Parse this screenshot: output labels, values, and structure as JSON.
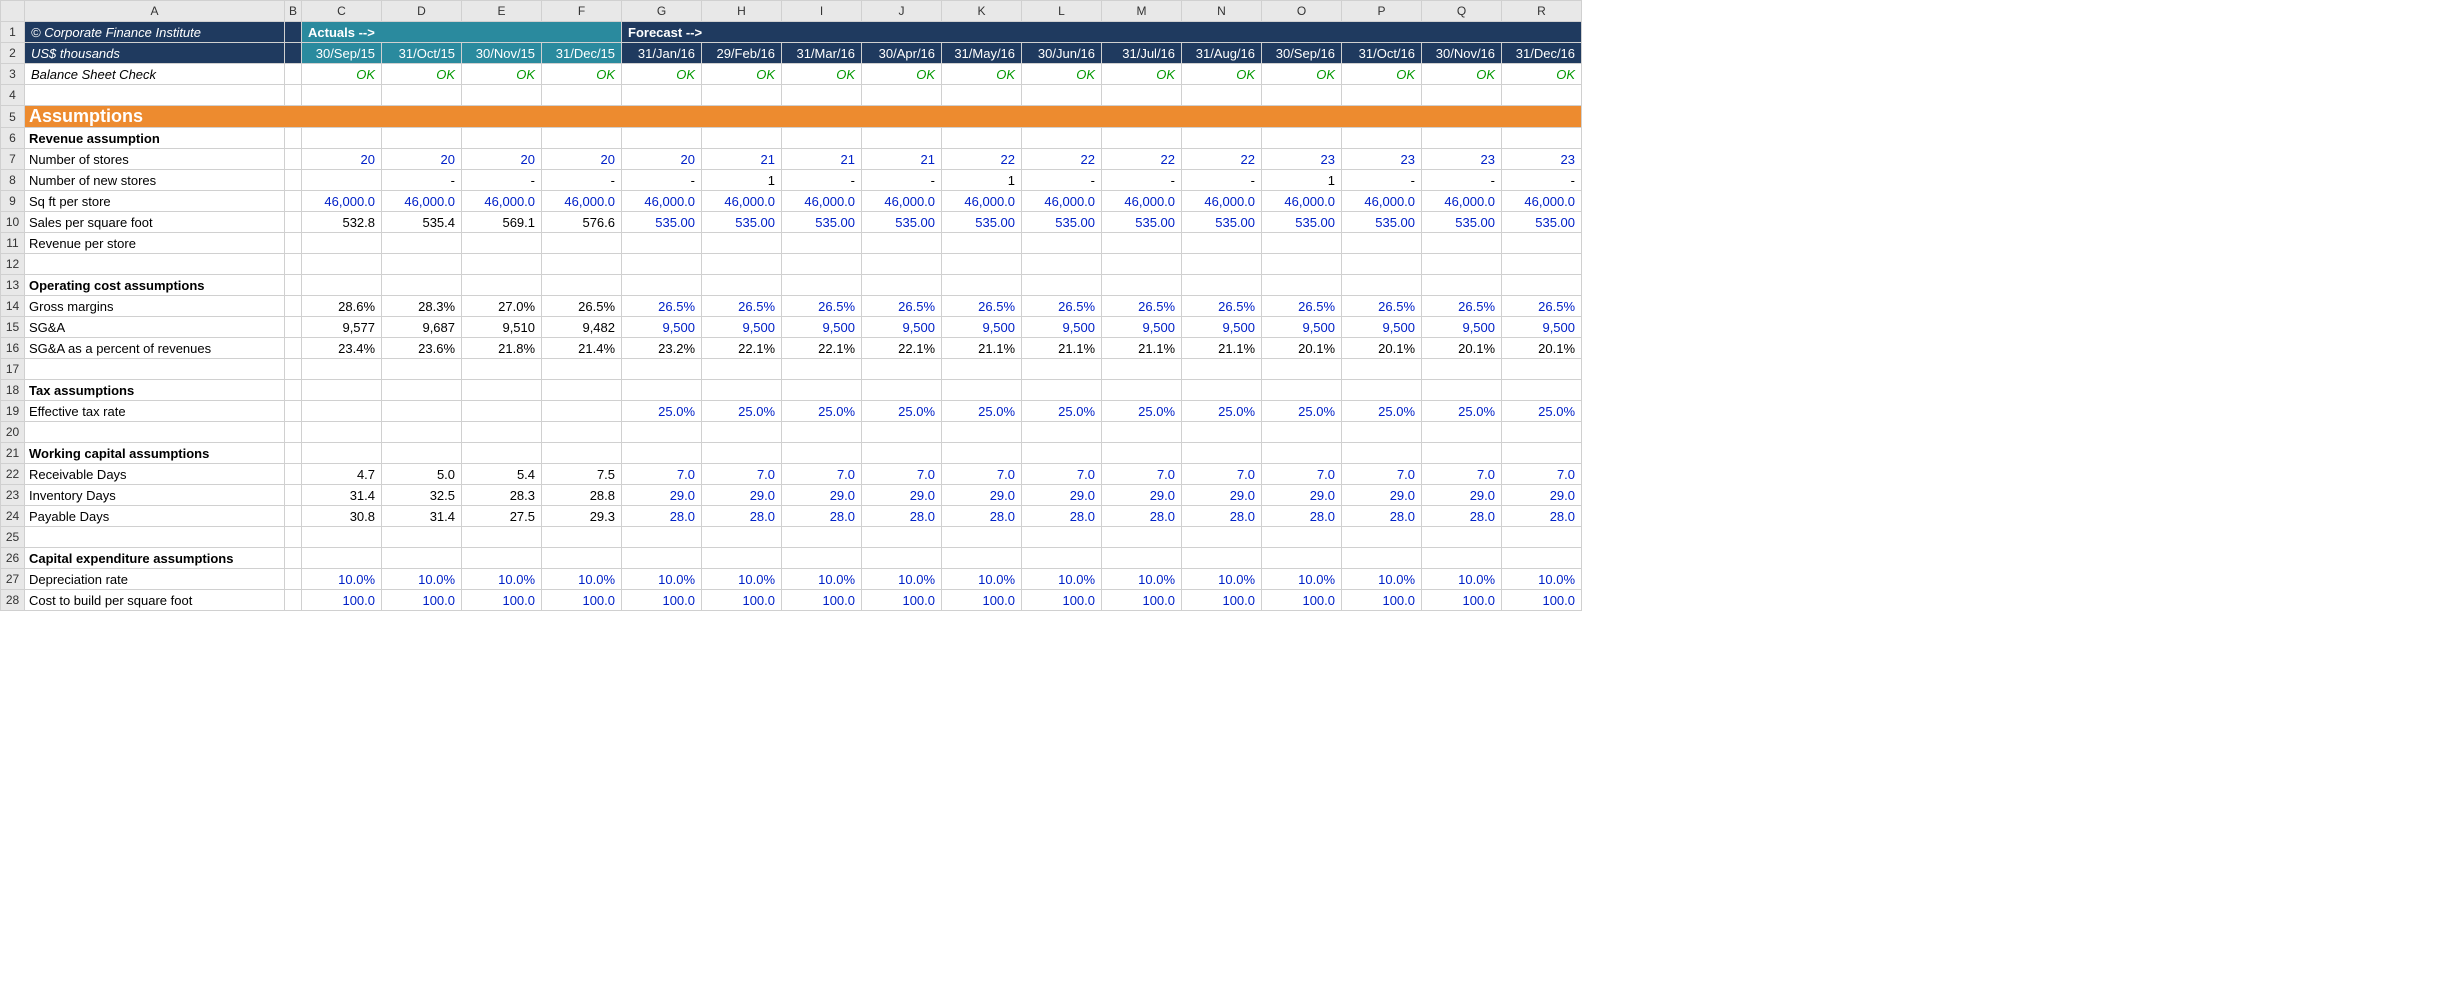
{
  "colHeaders": [
    "A",
    "B",
    "C",
    "D",
    "E",
    "F",
    "G",
    "H",
    "I",
    "J",
    "K",
    "L",
    "M",
    "N",
    "O",
    "P",
    "Q",
    "R"
  ],
  "rowCount": 28,
  "r1": {
    "a": "© Corporate Finance Institute",
    "c": "Actuals -->",
    "g": "Forecast -->"
  },
  "r2": {
    "a": "US$ thousands",
    "dates": [
      "30/Sep/15",
      "31/Oct/15",
      "30/Nov/15",
      "31/Dec/15",
      "31/Jan/16",
      "29/Feb/16",
      "31/Mar/16",
      "30/Apr/16",
      "31/May/16",
      "30/Jun/16",
      "31/Jul/16",
      "31/Aug/16",
      "30/Sep/16",
      "31/Oct/16",
      "30/Nov/16",
      "31/Dec/16"
    ]
  },
  "r3": {
    "a": "Balance Sheet Check",
    "ok": "OK"
  },
  "r5": {
    "a": "Assumptions"
  },
  "r6": {
    "a": "Revenue assumption"
  },
  "r7": {
    "a": "Number of stores",
    "v": [
      "20",
      "20",
      "20",
      "20",
      "20",
      "21",
      "21",
      "21",
      "22",
      "22",
      "22",
      "22",
      "23",
      "23",
      "23",
      "23"
    ],
    "blueFrom": 0
  },
  "r8": {
    "a": "Number of new stores",
    "v": [
      "",
      "-",
      "-",
      "-",
      "-",
      "1",
      "-",
      "-",
      "1",
      "-",
      "-",
      "-",
      "1",
      "-",
      "-",
      "-"
    ]
  },
  "r9": {
    "a": "Sq ft per store",
    "v": [
      "46,000.0",
      "46,000.0",
      "46,000.0",
      "46,000.0",
      "46,000.0",
      "46,000.0",
      "46,000.0",
      "46,000.0",
      "46,000.0",
      "46,000.0",
      "46,000.0",
      "46,000.0",
      "46,000.0",
      "46,000.0",
      "46,000.0",
      "46,000.0"
    ],
    "blueFrom": 0
  },
  "r10": {
    "a": "Sales per square foot",
    "v": [
      "532.8",
      "535.4",
      "569.1",
      "576.6",
      "535.00",
      "535.00",
      "535.00",
      "535.00",
      "535.00",
      "535.00",
      "535.00",
      "535.00",
      "535.00",
      "535.00",
      "535.00",
      "535.00"
    ],
    "blueFrom": 4
  },
  "r11": {
    "a": "Revenue per store"
  },
  "r13": {
    "a": "Operating cost assumptions"
  },
  "r14": {
    "a": "Gross margins",
    "v": [
      "28.6%",
      "28.3%",
      "27.0%",
      "26.5%",
      "26.5%",
      "26.5%",
      "26.5%",
      "26.5%",
      "26.5%",
      "26.5%",
      "26.5%",
      "26.5%",
      "26.5%",
      "26.5%",
      "26.5%",
      "26.5%"
    ],
    "blueFrom": 4
  },
  "r15": {
    "a": "SG&A",
    "v": [
      "9,577",
      "9,687",
      "9,510",
      "9,482",
      "9,500",
      "9,500",
      "9,500",
      "9,500",
      "9,500",
      "9,500",
      "9,500",
      "9,500",
      "9,500",
      "9,500",
      "9,500",
      "9,500"
    ],
    "blueFrom": 4
  },
  "r16": {
    "a": "SG&A as a percent of revenues",
    "v": [
      "23.4%",
      "23.6%",
      "21.8%",
      "21.4%",
      "23.2%",
      "22.1%",
      "22.1%",
      "22.1%",
      "21.1%",
      "21.1%",
      "21.1%",
      "21.1%",
      "20.1%",
      "20.1%",
      "20.1%",
      "20.1%"
    ]
  },
  "r18": {
    "a": "Tax assumptions"
  },
  "r19": {
    "a": "Effective tax rate",
    "v": [
      "",
      "",
      "",
      "",
      "25.0%",
      "25.0%",
      "25.0%",
      "25.0%",
      "25.0%",
      "25.0%",
      "25.0%",
      "25.0%",
      "25.0%",
      "25.0%",
      "25.0%",
      "25.0%"
    ],
    "blueFrom": 4
  },
  "r21": {
    "a": "Working capital assumptions"
  },
  "r22": {
    "a": "Receivable Days",
    "v": [
      "4.7",
      "5.0",
      "5.4",
      "7.5",
      "7.0",
      "7.0",
      "7.0",
      "7.0",
      "7.0",
      "7.0",
      "7.0",
      "7.0",
      "7.0",
      "7.0",
      "7.0",
      "7.0"
    ],
    "blueFrom": 4
  },
  "r23": {
    "a": "Inventory Days",
    "v": [
      "31.4",
      "32.5",
      "28.3",
      "28.8",
      "29.0",
      "29.0",
      "29.0",
      "29.0",
      "29.0",
      "29.0",
      "29.0",
      "29.0",
      "29.0",
      "29.0",
      "29.0",
      "29.0"
    ],
    "blueFrom": 4
  },
  "r24": {
    "a": "Payable Days",
    "v": [
      "30.8",
      "31.4",
      "27.5",
      "29.3",
      "28.0",
      "28.0",
      "28.0",
      "28.0",
      "28.0",
      "28.0",
      "28.0",
      "28.0",
      "28.0",
      "28.0",
      "28.0",
      "28.0"
    ],
    "blueFrom": 4
  },
  "r26": {
    "a": "Capital expenditure assumptions"
  },
  "r27": {
    "a": "Depreciation rate",
    "v": [
      "10.0%",
      "10.0%",
      "10.0%",
      "10.0%",
      "10.0%",
      "10.0%",
      "10.0%",
      "10.0%",
      "10.0%",
      "10.0%",
      "10.0%",
      "10.0%",
      "10.0%",
      "10.0%",
      "10.0%",
      "10.0%"
    ],
    "blueFrom": 0
  },
  "r28": {
    "a": "Cost to build per square foot",
    "v": [
      "100.0",
      "100.0",
      "100.0",
      "100.0",
      "100.0",
      "100.0",
      "100.0",
      "100.0",
      "100.0",
      "100.0",
      "100.0",
      "100.0",
      "100.0",
      "100.0",
      "100.0",
      "100.0"
    ],
    "blueFrom": 0
  }
}
